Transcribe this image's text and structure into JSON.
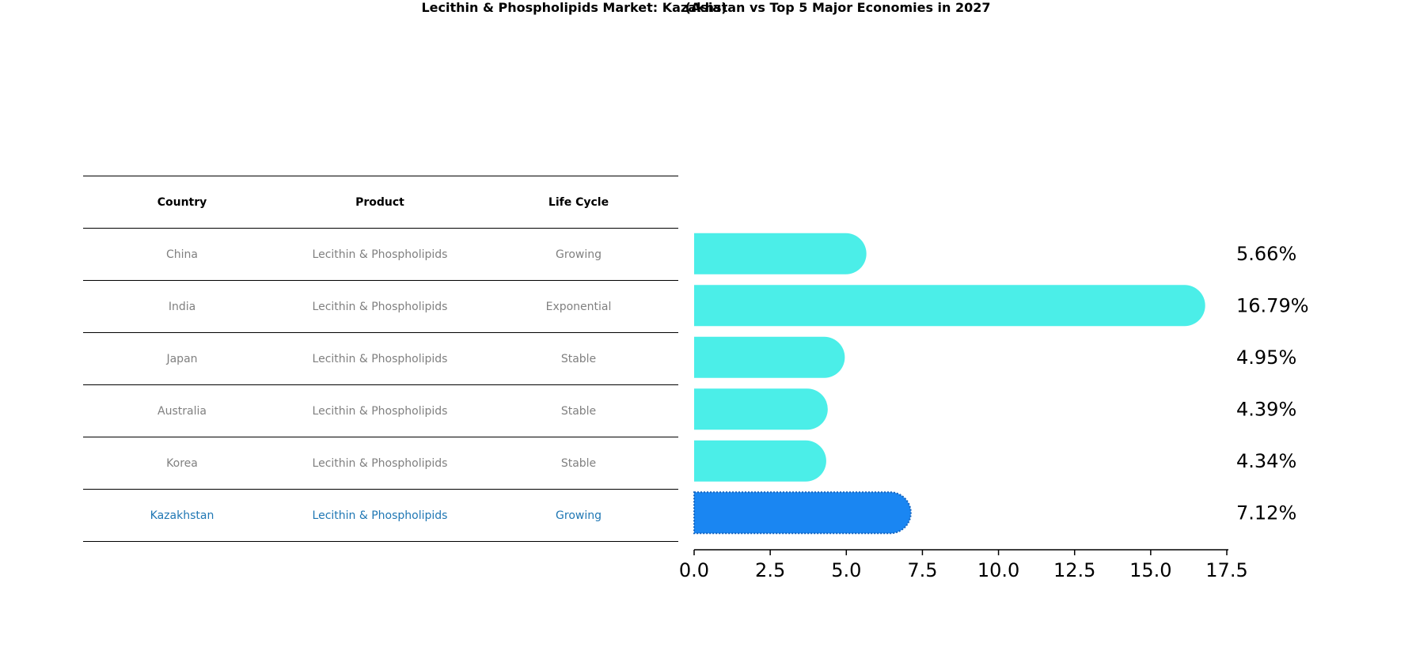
{
  "title": "Lecithin & Phospholipids Market: Kazakhstan vs Top 5 Major Economies in 2027",
  "subtitle": "(Asia)",
  "table": {
    "headers": [
      "Country",
      "Product",
      "Life Cycle"
    ],
    "rows": [
      [
        "China",
        "Lecithin & Phospholipids",
        "Growing"
      ],
      [
        "India",
        "Lecithin & Phospholipids",
        "Exponential"
      ],
      [
        "Japan",
        "Lecithin & Phospholipids",
        "Stable"
      ],
      [
        "Australia",
        "Lecithin & Phospholipids",
        "Stable"
      ],
      [
        "Korea",
        "Lecithin & Phospholipids",
        "Stable"
      ],
      [
        "Kazakhstan",
        "Lecithin & Phospholipids",
        "Growing"
      ]
    ],
    "highlight_row": 5
  },
  "chart_data": {
    "type": "bar",
    "orientation": "horizontal",
    "categories": [
      "China",
      "India",
      "Japan",
      "Australia",
      "Korea",
      "Kazakhstan"
    ],
    "values": [
      5.66,
      16.79,
      4.95,
      4.39,
      4.34,
      7.12
    ],
    "value_labels": [
      "5.66%",
      "16.79%",
      "4.95%",
      "4.39%",
      "4.34%",
      "7.12%"
    ],
    "xlim": [
      0,
      17.5
    ],
    "xticks": [
      0.0,
      2.5,
      5.0,
      7.5,
      10.0,
      12.5,
      15.0,
      17.5
    ],
    "xtick_labels": [
      "0.0",
      "2.5",
      "5.0",
      "7.5",
      "10.0",
      "12.5",
      "15.0",
      "17.5"
    ],
    "grid": false,
    "colors": {
      "default": "#4beee8",
      "highlight": "#1a86f2"
    },
    "highlight_index": 5
  }
}
